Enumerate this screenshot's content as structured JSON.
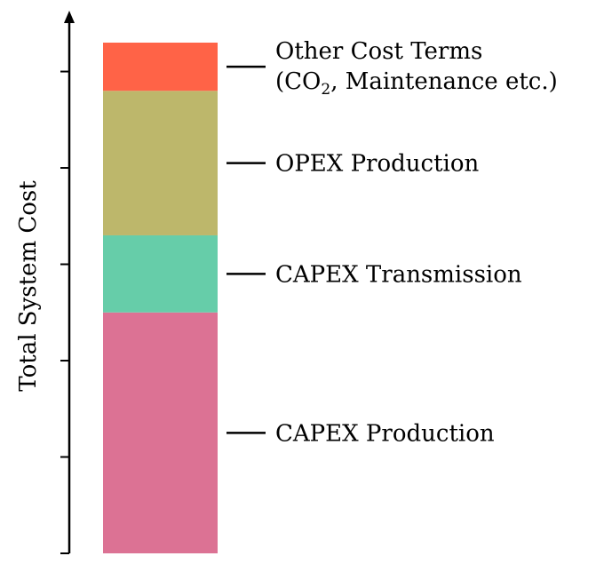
{
  "chart_data": {
    "type": "bar",
    "stacked": true,
    "ylabel": "Total System Cost",
    "ylim": [
      0,
      1.06
    ],
    "y_ticks": [
      0,
      0.2,
      0.4,
      0.6,
      0.8,
      1.0
    ],
    "tick_labels_shown": false,
    "grid": false,
    "legend": "inline-right",
    "series": [
      {
        "name": "CAPEX Production",
        "value": 0.5,
        "color": "#DC7294"
      },
      {
        "name": "CAPEX Transmission",
        "value": 0.16,
        "color": "#66CDA9"
      },
      {
        "name": "OPEX Production",
        "value": 0.3,
        "color": "#BDB76B"
      },
      {
        "name": "Other Cost Terms",
        "name_line2_pre": "(CO",
        "name_line2_sub": "2",
        "name_line2_post": ", Maintenance etc.)",
        "value": 0.1,
        "color": "#FF6347"
      }
    ]
  }
}
